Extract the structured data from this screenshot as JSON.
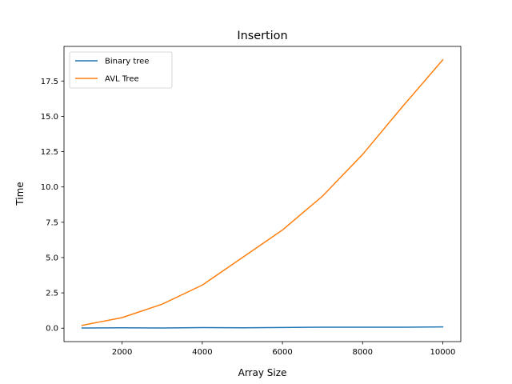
{
  "chart_data": {
    "type": "line",
    "title": "Insertion",
    "xlabel": "Array Size",
    "ylabel": "Time",
    "x": [
      1000,
      2000,
      3000,
      4000,
      5000,
      6000,
      7000,
      8000,
      9000,
      10000
    ],
    "xlim": [
      550,
      10450
    ],
    "ylim": [
      -0.95,
      19.95
    ],
    "xticks": [
      2000,
      4000,
      6000,
      8000,
      10000
    ],
    "xtick_labels": [
      "2000",
      "4000",
      "6000",
      "8000",
      "10000"
    ],
    "yticks": [
      0,
      2.5,
      5,
      7.5,
      10,
      12.5,
      15,
      17.5
    ],
    "ytick_labels": [
      "0.0",
      "2.5",
      "5.0",
      "7.5",
      "10.0",
      "12.5",
      "15.0",
      "17.5"
    ],
    "grid": false,
    "legend_position": "upper-left",
    "series": [
      {
        "name": "Binary tree",
        "color": "#1f77b4",
        "values": [
          0.01,
          0.03,
          0.01,
          0.04,
          0.03,
          0.05,
          0.07,
          0.07,
          0.07,
          0.09
        ]
      },
      {
        "name": "AVL Tree",
        "color": "#ff7f0e",
        "values": [
          0.2,
          0.75,
          1.7,
          3.05,
          5.0,
          6.95,
          9.35,
          12.3,
          15.7,
          19.0
        ]
      }
    ]
  }
}
